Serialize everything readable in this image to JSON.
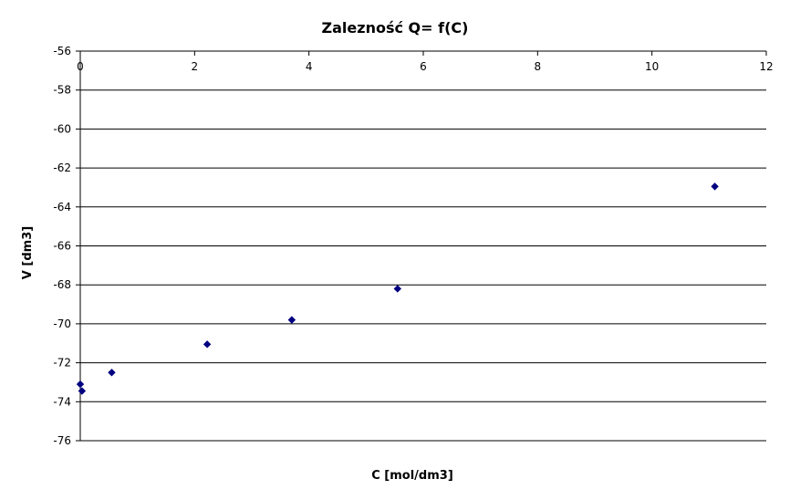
{
  "chart_data": {
    "type": "scatter",
    "title": "Zalezność Q= f(C)",
    "xlabel": "C [mol/dm3]",
    "ylabel": "V [dm3]",
    "xlim": [
      0,
      12
    ],
    "ylim": [
      -76,
      -56
    ],
    "xticks": [
      0,
      2,
      4,
      6,
      8,
      10,
      12
    ],
    "yticks": [
      -56,
      -58,
      -60,
      -62,
      -64,
      -66,
      -68,
      -70,
      -72,
      -74,
      -76
    ],
    "grid": "horizontal",
    "legend": "none",
    "marker_color": "#000080",
    "series": [
      {
        "x": [
          0.0,
          0.03,
          0.55,
          2.22,
          3.7,
          5.55,
          11.1
        ],
        "y": [
          -73.1,
          -73.45,
          -72.5,
          -71.05,
          -69.8,
          -68.2,
          -62.95
        ]
      }
    ]
  }
}
